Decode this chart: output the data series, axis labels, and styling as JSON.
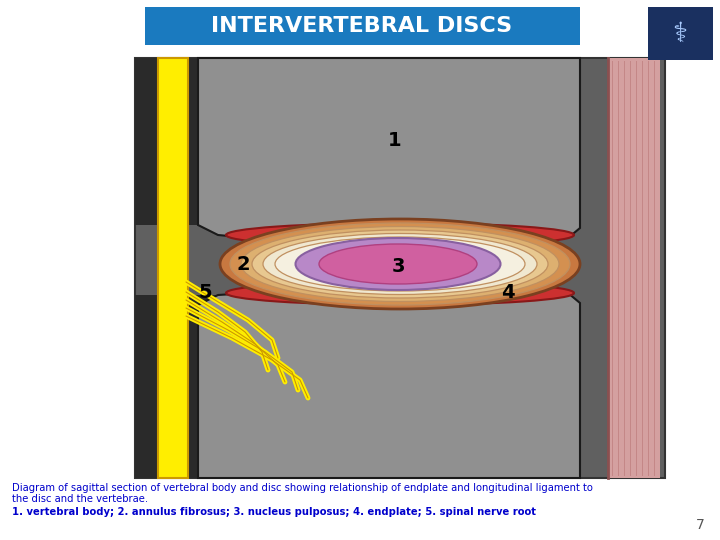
{
  "title": "INTERVERTEBRAL DISCS",
  "title_bg": "#1a7abf",
  "title_color": "#ffffff",
  "caption_line1": "Diagram of sagittal section of vertebral body and disc showing relationship of endplate and longitudinal ligament to",
  "caption_line2": "the disc and the vertebrae.",
  "caption_line3": "1. vertebral body; 2. annulus fibrosus; 3. nucleus pulposus; 4. endplate; 5. spinal nerve root",
  "caption_color": "#0000cc",
  "page_number": "7",
  "bg_color": "#ffffff",
  "diagram_bg": "#606060",
  "vertebra_color": "#909090",
  "dark_bg": "#2a2a2a",
  "ligament_color": "#d4a0a0",
  "ligament_line_color": "#c08080",
  "ligament_border_color": "#8b5050",
  "endplate_color": "#cc3030",
  "endplate_edge": "#881818",
  "annulus_colors": [
    "#c87840",
    "#d49050",
    "#ddb070",
    "#e8c890",
    "#f0e8d0",
    "#f5f0e0"
  ],
  "annulus_edge": "#c09060",
  "annulus_outer_edge": "#7a4020",
  "nucleus_outer_color": "#b888c8",
  "nucleus_outer_edge": "#8860a0",
  "nucleus_core_color": "#d060a0",
  "nucleus_core_edge": "#b04080",
  "nerve_color": "#ffee00",
  "nerve_edge": "#cc9900",
  "label_color": "#000000",
  "label_fontsize": 14
}
